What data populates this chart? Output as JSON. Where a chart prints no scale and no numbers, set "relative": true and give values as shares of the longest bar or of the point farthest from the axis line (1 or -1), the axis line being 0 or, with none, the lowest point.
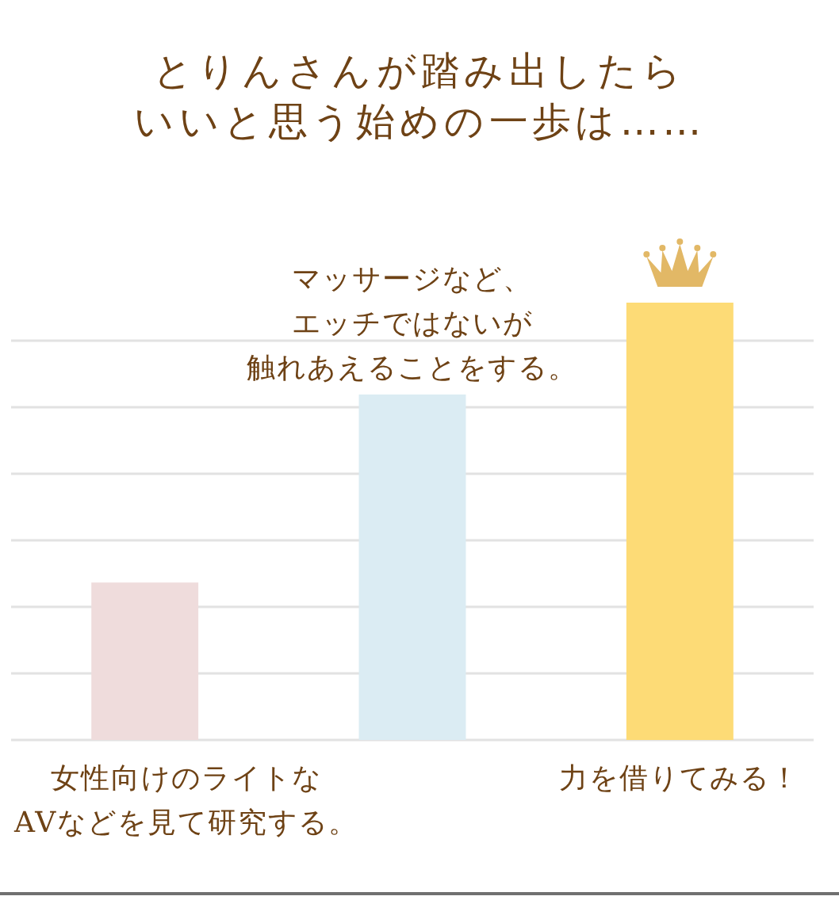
{
  "chart_data": {
    "type": "bar",
    "title": "とりんさんが踏み出したらいいと思う始めの一歩は……",
    "categories": [
      "女性向けのライトなAVなどを見て研究する。",
      "マッサージなど、エッチではないが触れあえることをする。",
      "力を借りてみる！"
    ],
    "values": [
      0.36,
      0.79,
      1
    ],
    "colors": [
      "#efdcdc",
      "#dbecf3",
      "#fddb76"
    ],
    "relative": true,
    "grid": "y"
  }
}
